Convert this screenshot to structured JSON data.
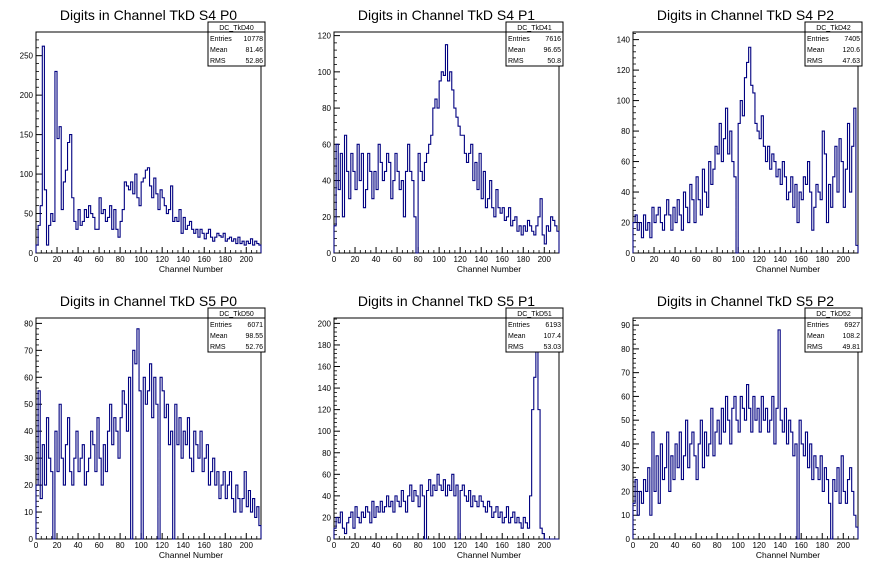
{
  "chart_data": [
    {
      "type": "histogram",
      "title": "Digits in Channel TkD S4 P0",
      "xlabel": "Channel Number",
      "xlim": [
        0,
        214
      ],
      "ylim": [
        0,
        280
      ],
      "xticks": [
        0,
        20,
        40,
        60,
        80,
        100,
        120,
        140,
        160,
        180,
        200
      ],
      "yticks": [
        0,
        50,
        100,
        150,
        200,
        250
      ],
      "stats": {
        "name": "DC_TkD40",
        "rows": [
          [
            "Entries",
            "10778"
          ],
          [
            "Mean",
            "81.46"
          ],
          [
            "RMS",
            "52.86"
          ]
        ]
      },
      "bin_width": 2,
      "values": [
        10,
        35,
        60,
        262,
        80,
        10,
        35,
        50,
        40,
        230,
        145,
        160,
        55,
        90,
        105,
        140,
        150,
        70,
        40,
        30,
        55,
        35,
        40,
        55,
        45,
        60,
        50,
        45,
        30,
        30,
        70,
        50,
        55,
        40,
        45,
        60,
        30,
        55,
        30,
        20,
        40,
        55,
        90,
        85,
        80,
        90,
        75,
        100,
        70,
        60,
        90,
        95,
        105,
        108,
        85,
        70,
        95,
        75,
        55,
        80,
        70,
        60,
        50,
        55,
        85,
        40,
        45,
        40,
        55,
        25,
        45,
        30,
        35,
        40,
        30,
        25,
        30,
        20,
        30,
        25,
        18,
        25,
        30,
        20,
        15,
        20,
        25,
        22,
        20,
        25,
        15,
        18,
        20,
        15,
        18,
        12,
        20,
        12,
        15,
        10,
        15,
        12,
        18,
        10,
        15,
        12,
        10
      ]
    },
    {
      "type": "histogram",
      "title": "Digits in Channel TkD S4 P1",
      "xlabel": "Channel Number",
      "xlim": [
        0,
        214
      ],
      "ylim": [
        0,
        122
      ],
      "xticks": [
        0,
        20,
        40,
        60,
        80,
        100,
        120,
        140,
        160,
        180,
        200
      ],
      "yticks": [
        0,
        20,
        40,
        60,
        80,
        100,
        120
      ],
      "stats": {
        "name": "DC_TkD41",
        "rows": [
          [
            "Entries",
            "7616"
          ],
          [
            "Mean",
            "96.65"
          ],
          [
            "RMS",
            "50.8"
          ]
        ]
      },
      "bin_width": 2,
      "values": [
        15,
        60,
        35,
        55,
        20,
        65,
        45,
        30,
        55,
        45,
        35,
        60,
        40,
        55,
        25,
        35,
        55,
        45,
        30,
        45,
        35,
        60,
        50,
        40,
        45,
        55,
        50,
        30,
        40,
        55,
        45,
        35,
        40,
        20,
        45,
        60,
        45,
        40,
        20,
        0,
        55,
        45,
        40,
        50,
        55,
        60,
        65,
        80,
        85,
        80,
        95,
        100,
        98,
        115,
        95,
        100,
        90,
        80,
        75,
        70,
        65,
        65,
        55,
        50,
        55,
        60,
        40,
        50,
        35,
        55,
        30,
        45,
        25,
        30,
        40,
        25,
        20,
        35,
        25,
        22,
        25,
        18,
        20,
        25,
        15,
        18,
        20,
        12,
        15,
        10,
        15,
        12,
        18,
        15,
        12,
        10,
        15,
        20,
        30,
        10,
        5,
        15,
        12,
        20,
        18,
        15,
        12
      ]
    },
    {
      "type": "histogram",
      "title": "Digits in Channel TkD S4 P2",
      "xlabel": "Channel Number",
      "xlim": [
        0,
        214
      ],
      "ylim": [
        0,
        145
      ],
      "xticks": [
        0,
        20,
        40,
        60,
        80,
        100,
        120,
        140,
        160,
        180,
        200
      ],
      "yticks": [
        0,
        20,
        40,
        60,
        80,
        100,
        120,
        140
      ],
      "stats": {
        "name": "DC_TkD42",
        "rows": [
          [
            "Entries",
            "7405"
          ],
          [
            "Mean",
            "120.6"
          ],
          [
            "RMS",
            "47.63"
          ]
        ]
      },
      "bin_width": 2,
      "values": [
        20,
        25,
        15,
        20,
        10,
        25,
        15,
        20,
        10,
        30,
        20,
        25,
        30,
        20,
        15,
        25,
        35,
        25,
        15,
        30,
        20,
        35,
        25,
        15,
        40,
        30,
        20,
        45,
        35,
        20,
        50,
        35,
        25,
        55,
        40,
        30,
        60,
        45,
        55,
        70,
        65,
        85,
        60,
        75,
        95,
        65,
        80,
        60,
        50,
        0,
        85,
        100,
        90,
        115,
        125,
        135,
        110,
        105,
        85,
        80,
        75,
        90,
        70,
        60,
        70,
        55,
        65,
        60,
        50,
        55,
        45,
        60,
        50,
        35,
        40,
        50,
        30,
        45,
        20,
        40,
        35,
        50,
        45,
        60,
        40,
        15,
        30,
        45,
        40,
        35,
        80,
        65,
        20,
        45,
        30,
        50,
        70,
        40,
        75,
        60,
        30,
        55,
        85,
        40,
        70,
        95,
        5
      ]
    },
    {
      "type": "histogram",
      "title": "Digits in Channel TkD S5 P0",
      "xlabel": "Channel Number",
      "xlim": [
        0,
        214
      ],
      "ylim": [
        0,
        82
      ],
      "xticks": [
        0,
        20,
        40,
        60,
        80,
        100,
        120,
        140,
        160,
        180,
        200
      ],
      "yticks": [
        0,
        10,
        20,
        30,
        40,
        50,
        60,
        70,
        80
      ],
      "stats": {
        "name": "DC_TkD50",
        "rows": [
          [
            "Entries",
            "6071"
          ],
          [
            "Mean",
            "98.55"
          ],
          [
            "RMS",
            "52.76"
          ]
        ]
      },
      "bin_width": 2,
      "values": [
        20,
        55,
        15,
        35,
        20,
        45,
        30,
        25,
        0,
        40,
        25,
        50,
        30,
        20,
        35,
        45,
        25,
        20,
        30,
        40,
        25,
        30,
        35,
        20,
        25,
        30,
        40,
        35,
        25,
        45,
        30,
        20,
        35,
        25,
        40,
        50,
        35,
        45,
        40,
        30,
        45,
        55,
        50,
        40,
        60,
        0,
        70,
        65,
        78,
        55,
        0,
        60,
        50,
        55,
        65,
        45,
        60,
        50,
        0,
        60,
        55,
        45,
        50,
        35,
        40,
        0,
        50,
        35,
        45,
        30,
        40,
        35,
        45,
        30,
        25,
        40,
        35,
        30,
        40,
        25,
        30,
        35,
        20,
        25,
        30,
        20,
        25,
        15,
        20,
        25,
        15,
        20,
        25,
        15,
        10,
        20,
        15,
        10,
        15,
        25,
        12,
        18,
        10,
        15,
        8,
        12,
        5
      ]
    },
    {
      "type": "histogram",
      "title": "Digits in Channel TkD S5 P1",
      "xlabel": "Channel Number",
      "xlim": [
        0,
        214
      ],
      "ylim": [
        0,
        205
      ],
      "xticks": [
        0,
        20,
        40,
        60,
        80,
        100,
        120,
        140,
        160,
        180,
        200
      ],
      "yticks": [
        0,
        20,
        40,
        60,
        80,
        100,
        120,
        140,
        160,
        180,
        200
      ],
      "stats": {
        "name": "DC_TkD51",
        "rows": [
          [
            "Entries",
            "6193"
          ],
          [
            "Mean",
            "107.4"
          ],
          [
            "RMS",
            "53.03"
          ]
        ]
      },
      "bin_width": 2,
      "values": [
        10,
        20,
        15,
        25,
        10,
        5,
        15,
        20,
        25,
        10,
        30,
        20,
        15,
        25,
        20,
        30,
        25,
        15,
        35,
        20,
        30,
        25,
        35,
        25,
        30,
        40,
        30,
        35,
        25,
        40,
        35,
        30,
        45,
        35,
        25,
        40,
        50,
        35,
        45,
        40,
        30,
        50,
        40,
        0,
        45,
        55,
        40,
        50,
        45,
        60,
        50,
        45,
        55,
        40,
        50,
        45,
        60,
        40,
        50,
        0,
        45,
        50,
        40,
        35,
        45,
        30,
        40,
        35,
        30,
        40,
        35,
        30,
        25,
        35,
        30,
        20,
        25,
        30,
        20,
        25,
        15,
        20,
        30,
        15,
        20,
        25,
        15,
        20,
        15,
        10,
        20,
        15,
        10,
        40,
        120,
        150,
        180,
        120,
        10,
        5,
        0,
        0,
        0,
        0,
        0,
        0,
        0
      ]
    },
    {
      "type": "histogram",
      "title": "Digits in Channel TkD S5 P2",
      "xlabel": "Channel Number",
      "xlim": [
        0,
        214
      ],
      "ylim": [
        0,
        93
      ],
      "xticks": [
        0,
        20,
        40,
        60,
        80,
        100,
        120,
        140,
        160,
        180,
        200
      ],
      "yticks": [
        0,
        10,
        20,
        30,
        40,
        50,
        60,
        70,
        80,
        90
      ],
      "stats": {
        "name": "DC_TkD52",
        "rows": [
          [
            "Entries",
            "6927"
          ],
          [
            "Mean",
            "108.2"
          ],
          [
            "RMS",
            "49.81"
          ]
        ]
      },
      "bin_width": 2,
      "values": [
        15,
        25,
        10,
        20,
        15,
        25,
        20,
        30,
        10,
        45,
        20,
        35,
        15,
        40,
        25,
        30,
        45,
        20,
        35,
        25,
        40,
        30,
        45,
        25,
        35,
        50,
        30,
        40,
        45,
        35,
        25,
        40,
        50,
        30,
        45,
        35,
        40,
        55,
        35,
        45,
        50,
        40,
        55,
        45,
        60,
        50,
        40,
        55,
        60,
        50,
        45,
        60,
        55,
        50,
        65,
        55,
        45,
        60,
        50,
        55,
        45,
        60,
        50,
        55,
        45,
        50,
        60,
        40,
        55,
        88,
        50,
        45,
        55,
        40,
        50,
        45,
        35,
        40,
        0,
        50,
        40,
        35,
        45,
        30,
        40,
        25,
        35,
        30,
        25,
        35,
        20,
        30,
        25,
        15,
        0,
        25,
        20,
        30,
        15,
        35,
        20,
        15,
        25,
        30,
        20,
        10,
        5
      ]
    }
  ]
}
